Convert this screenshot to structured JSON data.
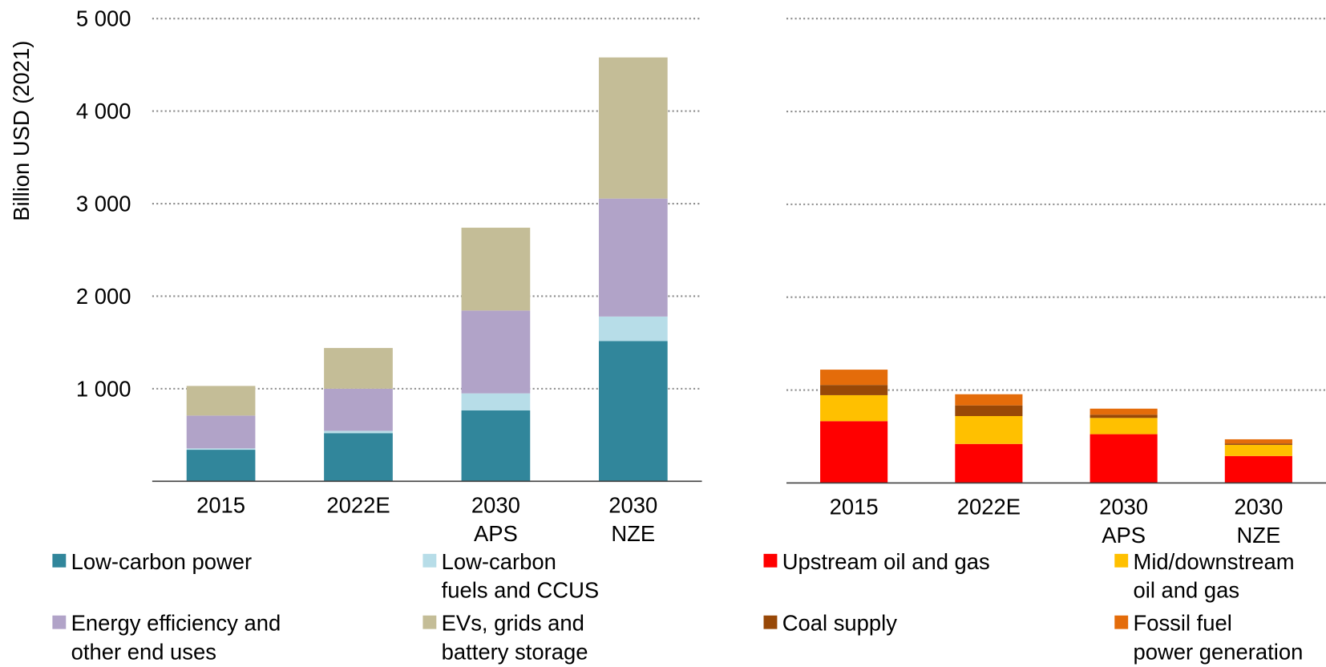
{
  "chart_data": [
    {
      "type": "bar",
      "stacked": true,
      "y_label": "Billion USD (2021)",
      "categories": [
        "2015",
        "2022E",
        "2030\nAPS",
        "2030\nNZE"
      ],
      "series": [
        {
          "name": "Low-carbon power",
          "color": "#31869b",
          "values": [
            340,
            520,
            765,
            1515
          ]
        },
        {
          "name": "Low-carbon\nfuels and CCUS",
          "color": "#b7dde8",
          "values": [
            15,
            25,
            185,
            265
          ]
        },
        {
          "name": "Energy efficiency and\nother end uses",
          "color": "#b1a3c8",
          "values": [
            355,
            455,
            895,
            1275
          ]
        },
        {
          "name": "EVs, grids and\nbattery storage",
          "color": "#c4bd97",
          "values": [
            320,
            440,
            895,
            1525
          ]
        }
      ],
      "ylim": [
        0,
        5000
      ],
      "yticks": [
        {
          "value": 1000,
          "label": "1 000"
        },
        {
          "value": 2000,
          "label": "2 000"
        },
        {
          "value": 3000,
          "label": "3 000"
        },
        {
          "value": 4000,
          "label": "4 000"
        },
        {
          "value": 5000,
          "label": "5 000"
        }
      ],
      "grid": true
    },
    {
      "type": "bar",
      "stacked": true,
      "categories": [
        "2015",
        "2022E",
        "2030\nAPS",
        "2030\nNZE"
      ],
      "series": [
        {
          "name": "Upstream oil and gas",
          "color": "#ff0000",
          "values": [
            665,
            420,
            525,
            290
          ]
        },
        {
          "name": "Mid/downstream\noil and gas",
          "color": "#ffc000",
          "values": [
            280,
            300,
            175,
            120
          ]
        },
        {
          "name": "Coal supply",
          "color": "#984807",
          "values": [
            110,
            115,
            35,
            15
          ]
        },
        {
          "name": "Fossil fuel\npower generation",
          "color": "#e46c0a",
          "values": [
            165,
            120,
            65,
            45
          ]
        }
      ],
      "ylim": [
        0,
        5000
      ],
      "yticks": [
        1000,
        2000,
        3000,
        4000,
        5000
      ],
      "grid": true
    }
  ]
}
